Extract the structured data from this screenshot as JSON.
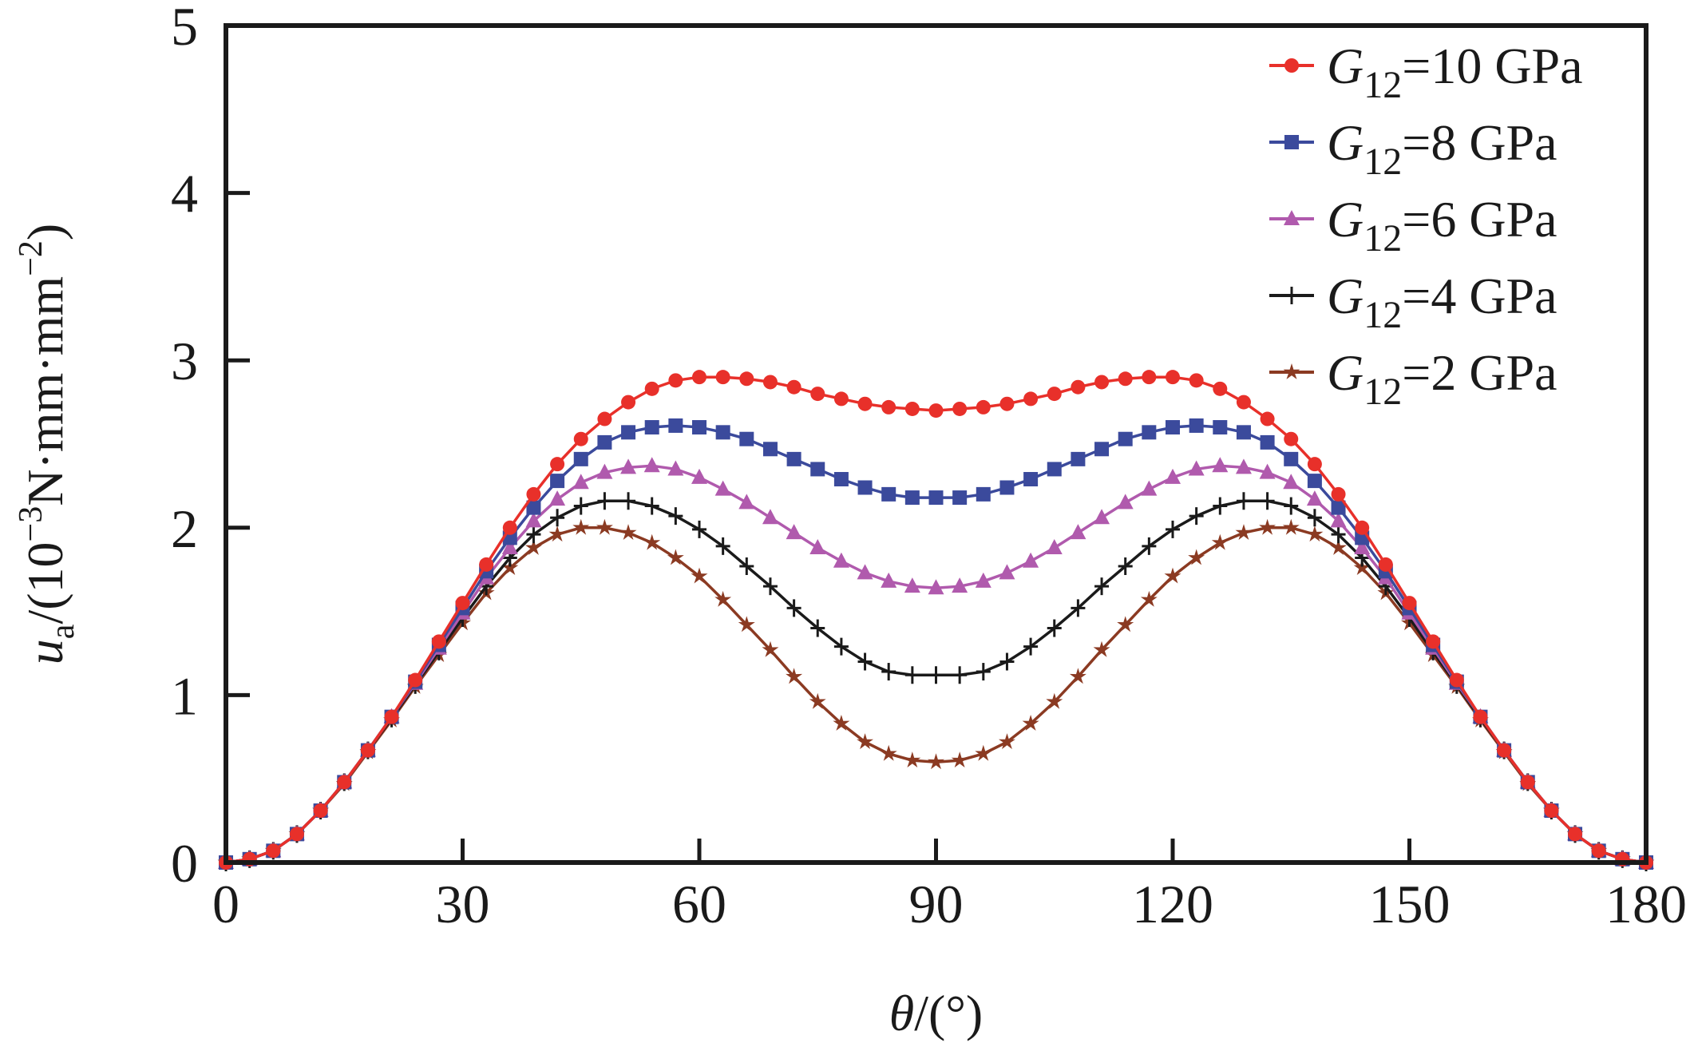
{
  "chart_data": {
    "type": "line",
    "title": "",
    "xlabel": "θ/(°)",
    "ylabel": "u_a/(10^-3 N·mm·mm^-2)",
    "ylabel_parts": {
      "var": "u",
      "sub": "a",
      "pre": "/(10",
      "exp1": "−3",
      "mid": "N·mm·mm",
      "exp2": "−2",
      "post": ")"
    },
    "xlabel_parts": {
      "var": "θ",
      "rest": "/(°)"
    },
    "xlim": [
      0,
      180
    ],
    "ylim": [
      0,
      5
    ],
    "x_ticks": [
      0,
      30,
      60,
      90,
      120,
      150,
      180
    ],
    "y_ticks": [
      0,
      1,
      2,
      3,
      4,
      5
    ],
    "grid": false,
    "legend_position": "top-right",
    "x": [
      0,
      3,
      6,
      9,
      12,
      15,
      18,
      21,
      24,
      27,
      30,
      33,
      36,
      39,
      42,
      45,
      48,
      51,
      54,
      57,
      60,
      63,
      66,
      69,
      72,
      75,
      78,
      81,
      84,
      87,
      90,
      93,
      96,
      99,
      102,
      105,
      108,
      111,
      114,
      117,
      120,
      123,
      126,
      129,
      132,
      135,
      138,
      141,
      144,
      147,
      150,
      153,
      156,
      159,
      162,
      165,
      168,
      171,
      174,
      177,
      180
    ],
    "series": [
      {
        "name": "G12=10 GPa",
        "label_var": "G",
        "label_sub": "12",
        "label_rest": "=10 GPa",
        "color": "#e8302a",
        "marker": "circle",
        "half": [
          0,
          0.02,
          0.07,
          0.17,
          0.31,
          0.48,
          0.67,
          0.87,
          1.09,
          1.32,
          1.55,
          1.78,
          2.0,
          2.2,
          2.38,
          2.53,
          2.65,
          2.75,
          2.83,
          2.88,
          2.9,
          2.9,
          2.89,
          2.87,
          2.84,
          2.8,
          2.77,
          2.74,
          2.72,
          2.71,
          2.7
        ]
      },
      {
        "name": "G12=8 GPa",
        "label_var": "G",
        "label_sub": "12",
        "label_rest": "=8 GPa",
        "color": "#3b4a9c",
        "marker": "square",
        "half": [
          0,
          0.02,
          0.07,
          0.17,
          0.31,
          0.48,
          0.67,
          0.87,
          1.08,
          1.3,
          1.52,
          1.74,
          1.94,
          2.12,
          2.28,
          2.41,
          2.51,
          2.57,
          2.6,
          2.61,
          2.6,
          2.57,
          2.53,
          2.47,
          2.41,
          2.35,
          2.29,
          2.24,
          2.2,
          2.18,
          2.18
        ]
      },
      {
        "name": "G12=6 GPa",
        "label_var": "G",
        "label_sub": "12",
        "label_rest": "=6 GPa",
        "color": "#b05aad",
        "marker": "triangle",
        "half": [
          0,
          0.02,
          0.07,
          0.17,
          0.31,
          0.48,
          0.67,
          0.87,
          1.07,
          1.28,
          1.49,
          1.7,
          1.88,
          2.04,
          2.17,
          2.27,
          2.33,
          2.36,
          2.37,
          2.35,
          2.3,
          2.23,
          2.15,
          2.06,
          1.97,
          1.88,
          1.8,
          1.73,
          1.68,
          1.65,
          1.64
        ]
      },
      {
        "name": "G12=4 GPa",
        "label_var": "G",
        "label_sub": "12",
        "label_rest": "=4 GPa",
        "color": "#1a1a1a",
        "marker": "plus",
        "half": [
          0,
          0.02,
          0.07,
          0.17,
          0.31,
          0.48,
          0.67,
          0.86,
          1.06,
          1.26,
          1.46,
          1.65,
          1.82,
          1.96,
          2.06,
          2.13,
          2.16,
          2.16,
          2.13,
          2.07,
          1.99,
          1.89,
          1.77,
          1.65,
          1.52,
          1.4,
          1.29,
          1.2,
          1.14,
          1.12,
          1.12
        ]
      },
      {
        "name": "G12=2 GPa",
        "label_var": "G",
        "label_sub": "12",
        "label_rest": "=2 GPa",
        "color": "#8b3a22",
        "marker": "star",
        "half": [
          0,
          0.02,
          0.07,
          0.17,
          0.31,
          0.47,
          0.66,
          0.85,
          1.05,
          1.24,
          1.43,
          1.61,
          1.76,
          1.88,
          1.96,
          2.0,
          2.0,
          1.97,
          1.91,
          1.82,
          1.71,
          1.57,
          1.42,
          1.27,
          1.11,
          0.96,
          0.83,
          0.72,
          0.65,
          0.61,
          0.6
        ]
      }
    ]
  }
}
